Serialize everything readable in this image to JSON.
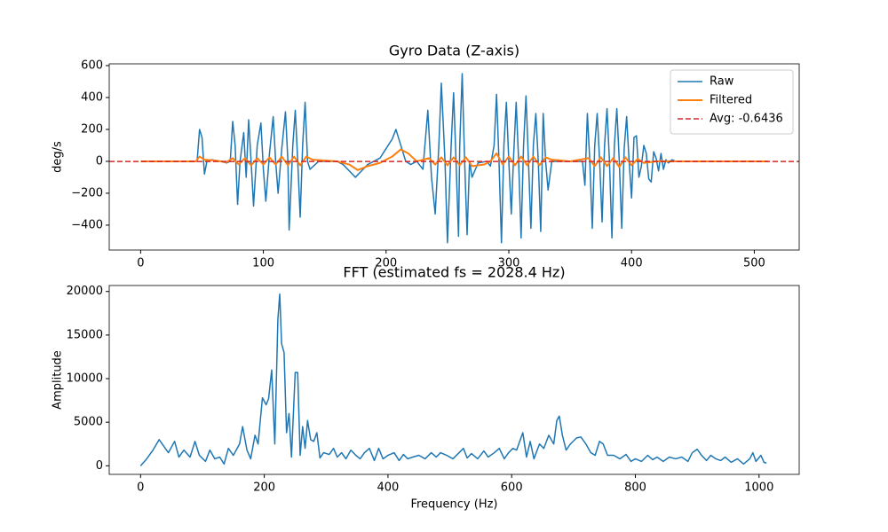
{
  "chart_data": [
    {
      "type": "line",
      "title": "Gyro Data (Z-axis)",
      "y_label": "deg/s",
      "xlim": [
        -25.6,
        536.6
      ],
      "ylim": [
        -556,
        611
      ],
      "xticks": [
        0,
        100,
        200,
        300,
        400,
        500
      ],
      "yticks": [
        {
          "value": -400,
          "label": "−400"
        },
        {
          "value": -200,
          "label": "−200"
        },
        0,
        200,
        400,
        600
      ],
      "legend": "upper right",
      "series": [
        {
          "name": "Raw",
          "color": "#1f77b4",
          "x": [
            0,
            46,
            48,
            50,
            52,
            54,
            58,
            65,
            70,
            73,
            75,
            77,
            79,
            81,
            84,
            86,
            88,
            90,
            92,
            95,
            98,
            100,
            102,
            105,
            108,
            110,
            112,
            115,
            118,
            120,
            121,
            124,
            126,
            128,
            130,
            132,
            134,
            136,
            138,
            145,
            160,
            165,
            170,
            175,
            180,
            185,
            190,
            195,
            200,
            205,
            208,
            212,
            216,
            220,
            225,
            230,
            234,
            237,
            240,
            243,
            245,
            248,
            250,
            253,
            255,
            257,
            259,
            260,
            262,
            264,
            266,
            268,
            270,
            275,
            282,
            285,
            288,
            290,
            292,
            294,
            296,
            298,
            300,
            302,
            304,
            306,
            308,
            310,
            312,
            314,
            316,
            318,
            320,
            322,
            324,
            326,
            328,
            330,
            332,
            335,
            340,
            350,
            360,
            362,
            364,
            366,
            368,
            370,
            372,
            374,
            376,
            378,
            380,
            382,
            384,
            386,
            388,
            390,
            392,
            394,
            396,
            398,
            400,
            402,
            404,
            406,
            408,
            410,
            412,
            414,
            416,
            418,
            420,
            422,
            424,
            426,
            428,
            430,
            433,
            436,
            460,
            500,
            511
          ],
          "values": [
            0,
            0,
            200,
            150,
            -80,
            0,
            10,
            0,
            -10,
            0,
            250,
            100,
            -270,
            0,
            180,
            -100,
            260,
            0,
            -280,
            100,
            240,
            -50,
            -250,
            50,
            280,
            0,
            -200,
            80,
            310,
            0,
            -430,
            100,
            320,
            0,
            -350,
            100,
            370,
            0,
            -50,
            0,
            0,
            -20,
            -60,
            -100,
            -60,
            -20,
            0,
            20,
            80,
            140,
            200,
            100,
            0,
            -20,
            0,
            -50,
            320,
            -100,
            -330,
            100,
            490,
            0,
            -510,
            100,
            430,
            0,
            -470,
            100,
            550,
            0,
            -460,
            0,
            -100,
            -10,
            0,
            -30,
            100,
            420,
            0,
            -510,
            100,
            370,
            0,
            -330,
            50,
            370,
            0,
            -480,
            100,
            410,
            0,
            -420,
            100,
            300,
            0,
            -440,
            300,
            0,
            -180,
            0,
            0,
            0,
            0,
            -150,
            300,
            0,
            -420,
            100,
            300,
            0,
            -380,
            100,
            330,
            0,
            -480,
            100,
            330,
            0,
            -420,
            80,
            280,
            0,
            -230,
            150,
            160,
            -100,
            -30,
            100,
            50,
            -110,
            -130,
            60,
            20,
            -60,
            50,
            -50,
            10,
            -10,
            10,
            0,
            0,
            0,
            0
          ]
        },
        {
          "name": "Filtered",
          "color": "#ff7f0e",
          "x": [
            0,
            45,
            48,
            52,
            60,
            70,
            75,
            80,
            85,
            90,
            95,
            100,
            105,
            110,
            115,
            120,
            125,
            130,
            135,
            140,
            160,
            170,
            177,
            185,
            195,
            205,
            212,
            218,
            225,
            235,
            240,
            245,
            250,
            255,
            260,
            265,
            270,
            280,
            285,
            290,
            295,
            300,
            305,
            310,
            315,
            320,
            325,
            330,
            335,
            350,
            365,
            370,
            375,
            380,
            385,
            390,
            395,
            400,
            405,
            410,
            420,
            511
          ],
          "values": [
            0,
            0,
            30,
            10,
            5,
            -5,
            20,
            -20,
            20,
            -25,
            20,
            -20,
            25,
            -20,
            30,
            -25,
            30,
            -25,
            30,
            10,
            0,
            -20,
            -55,
            -30,
            -10,
            30,
            75,
            50,
            0,
            20,
            -20,
            25,
            -25,
            25,
            -25,
            25,
            -30,
            -20,
            0,
            50,
            -20,
            30,
            -25,
            30,
            -25,
            30,
            -25,
            25,
            10,
            0,
            20,
            -30,
            25,
            -30,
            20,
            -35,
            25,
            -25,
            15,
            -10,
            0,
            0
          ]
        },
        {
          "name": "Avg: -0.6436",
          "color": "#d62728",
          "type": "hline",
          "value": -0.6436
        }
      ]
    },
    {
      "type": "line",
      "title": "FFT (estimated fs = 2028.4 Hz)",
      "x_label": "Frequency (Hz)",
      "y_label": "Amplitude",
      "xlim": [
        -50.7,
        1064.9
      ],
      "ylim": [
        -985,
        20685
      ],
      "xticks": [
        0,
        200,
        400,
        600,
        800,
        1000
      ],
      "yticks": [
        0,
        5000,
        10000,
        15000,
        20000
      ],
      "series": [
        {
          "name": "FFT",
          "color": "#1f77b4",
          "x": [
            0,
            10,
            20,
            30,
            38,
            45,
            55,
            62,
            70,
            80,
            88,
            95,
            105,
            112,
            120,
            128,
            135,
            142,
            150,
            160,
            165,
            172,
            178,
            185,
            190,
            197,
            203,
            207,
            212,
            217,
            222,
            225,
            228,
            232,
            236,
            240,
            244,
            250,
            254,
            258,
            262,
            266,
            270,
            275,
            280,
            285,
            290,
            296,
            305,
            312,
            318,
            325,
            332,
            340,
            348,
            355,
            362,
            370,
            378,
            385,
            392,
            400,
            410,
            418,
            425,
            432,
            440,
            450,
            460,
            470,
            478,
            485,
            495,
            505,
            515,
            522,
            528,
            535,
            545,
            555,
            562,
            572,
            580,
            588,
            595,
            602,
            608,
            618,
            624,
            630,
            636,
            645,
            652,
            660,
            668,
            673,
            677,
            682,
            688,
            695,
            705,
            712,
            720,
            728,
            735,
            742,
            748,
            755,
            765,
            775,
            785,
            793,
            800,
            810,
            820,
            828,
            835,
            845,
            855,
            865,
            875,
            885,
            892,
            900,
            907,
            915,
            922,
            930,
            938,
            945,
            955,
            965,
            975,
            985,
            990,
            995,
            1003,
            1008,
            1012
          ],
          "values": [
            0,
            800,
            1800,
            3000,
            2200,
            1500,
            2800,
            1000,
            1800,
            1000,
            2800,
            1200,
            500,
            1800,
            800,
            1000,
            200,
            2000,
            1200,
            2500,
            4500,
            1800,
            800,
            3500,
            2500,
            7800,
            7000,
            7700,
            11000,
            2500,
            16800,
            19700,
            14000,
            13000,
            3800,
            6000,
            1000,
            10700,
            10700,
            1200,
            4500,
            2000,
            5200,
            3000,
            2800,
            3800,
            900,
            1500,
            1300,
            2000,
            1000,
            1500,
            800,
            1800,
            1200,
            800,
            1500,
            2000,
            600,
            2000,
            800,
            1200,
            1500,
            600,
            1300,
            800,
            1000,
            1200,
            800,
            1500,
            1000,
            1500,
            1200,
            800,
            1500,
            2000,
            900,
            1400,
            800,
            1700,
            1000,
            1500,
            2000,
            800,
            1500,
            2000,
            1800,
            3800,
            1000,
            2800,
            800,
            2500,
            2000,
            3500,
            2500,
            5200,
            5700,
            3500,
            1800,
            2500,
            3200,
            3300,
            2500,
            1500,
            1200,
            2800,
            2500,
            1200,
            1200,
            800,
            1300,
            500,
            800,
            500,
            1200,
            700,
            1000,
            500,
            1000,
            800,
            1000,
            500,
            1500,
            1900,
            1200,
            600,
            1200,
            800,
            600,
            1000,
            400,
            800,
            200,
            800,
            1500,
            500,
            1200,
            400,
            300
          ]
        }
      ]
    }
  ]
}
